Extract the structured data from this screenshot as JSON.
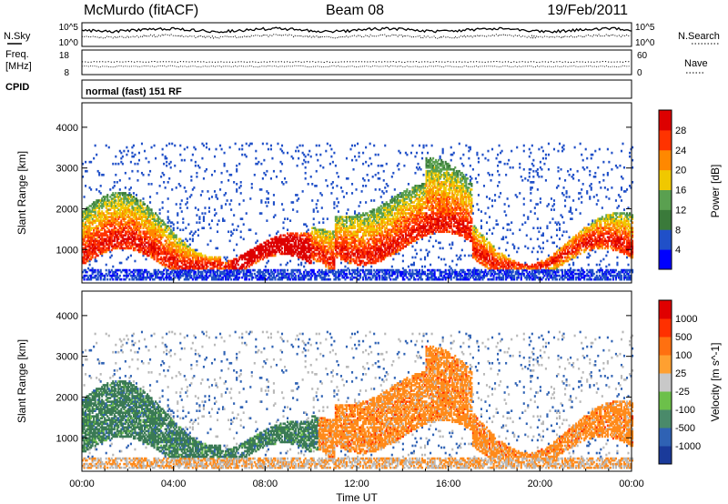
{
  "header": {
    "station": "McMurdo (fitACF)",
    "beam": "Beam 08",
    "date": "19/Feb/2011"
  },
  "status_strips": {
    "nsky_label": "N.Sky",
    "nsearch_label": "N.Search",
    "noise_ticks": [
      "10^5",
      "10^0"
    ],
    "noise_ticks_right": [
      "10^5",
      "10^0"
    ],
    "freq_label_line1": "Freq.",
    "freq_label_line2": "[MHz]",
    "freq_ticks": [
      "18",
      "8"
    ],
    "nave_label": "Nave",
    "nave_ticks": [
      "60",
      "0"
    ],
    "cpid_label": "CPID",
    "cpid_value": "normal (fast) 151 RF"
  },
  "chart_data": [
    {
      "type": "heatmap",
      "panel": "power",
      "ylabel": "Slant Range [km]",
      "yticks": [
        1000,
        2000,
        3000,
        4000
      ],
      "ylim": [
        180,
        4600
      ],
      "xlim": [
        0,
        24
      ],
      "colorbar_label": "Power [dB]",
      "colorbar_ticks": [
        "28",
        "24",
        "20",
        "16",
        "12",
        "8",
        "4"
      ],
      "colorbar_colors": [
        "#0000ff",
        "#2050c8",
        "#3a7a3a",
        "#5aa050",
        "#f0c800",
        "#ff8800",
        "#ff3300",
        "#dd0000"
      ]
    },
    {
      "type": "heatmap",
      "panel": "velocity",
      "ylabel": "Slant Range [km]",
      "yticks": [
        1000,
        2000,
        3000,
        4000
      ],
      "ylim": [
        180,
        4600
      ],
      "xlim": [
        0,
        24
      ],
      "xlabel": "Time UT",
      "xticks": [
        "00:00",
        "04:00",
        "08:00",
        "12:00",
        "16:00",
        "20:00",
        "00:00"
      ],
      "colorbar_label": "Velocity [m s^-1]",
      "colorbar_ticks": [
        "1000",
        "500",
        "100",
        "25",
        "-25",
        "-100",
        "-500",
        "-1000"
      ],
      "colorbar_colors": [
        "#1a3a9a",
        "#2f62b4",
        "#4a8a6a",
        "#6cc04a",
        "#c8c8c8",
        "#ffa030",
        "#ff7010",
        "#ff3000",
        "#e00000"
      ]
    }
  ],
  "colors": {
    "ground_scatter": "#8c8c8c",
    "frame": "#000000",
    "background": "#ffffff"
  }
}
